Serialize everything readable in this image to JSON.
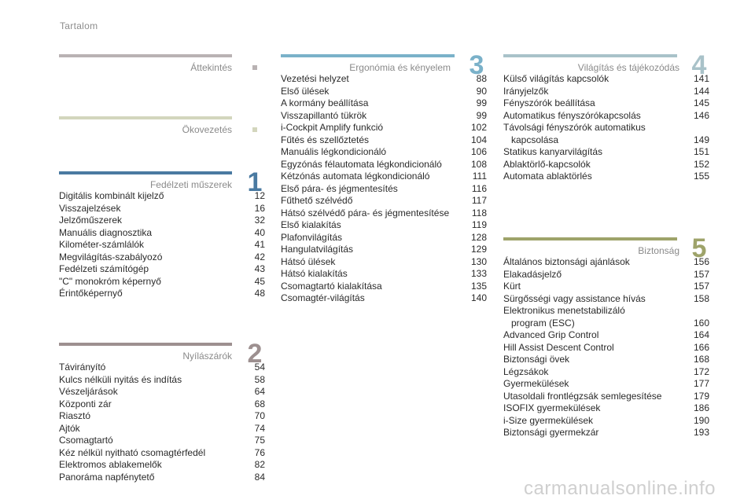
{
  "header": {
    "title": "Tartalom"
  },
  "sections": {
    "attekintes": {
      "title": "Áttekintés",
      "color": "#b9b2b3"
    },
    "okovezetes": {
      "title": "Ökovezetés",
      "color": "#d3d6bd"
    },
    "s1": {
      "number": "1",
      "title": "Fedélzeti műszerek",
      "color": "#4a7aa1",
      "items": [
        {
          "label": "Digitális kombinált kijelző",
          "page": "12"
        },
        {
          "label": "Visszajelzések",
          "page": "16"
        },
        {
          "label": "Jelzőműszerek",
          "page": "32"
        },
        {
          "label": "Manuális diagnosztika",
          "page": "40"
        },
        {
          "label": "Kilométer-számlálók",
          "page": "41"
        },
        {
          "label": "Megvilágítás-szabályozó",
          "page": "42"
        },
        {
          "label": "Fedélzeti számítógép",
          "page": "43"
        },
        {
          "label": "\"C\" monokróm képernyő",
          "page": "45"
        },
        {
          "label": "Érintőképernyő",
          "page": "48"
        }
      ]
    },
    "s2": {
      "number": "2",
      "title": "Nyílászárók",
      "color": "#9d9090",
      "items": [
        {
          "label": "Távirányító",
          "page": "54"
        },
        {
          "label": "Kulcs nélküli nyitás és indítás",
          "page": "58"
        },
        {
          "label": "Vészeljárások",
          "page": "64"
        },
        {
          "label": "Központi zár",
          "page": "68"
        },
        {
          "label": "Riasztó",
          "page": "70"
        },
        {
          "label": "Ajtók",
          "page": "74"
        },
        {
          "label": "Csomagtartó",
          "page": "75"
        },
        {
          "label": "Kéz nélkül nyitható csomagtérfedél",
          "page": "76"
        },
        {
          "label": "Elektromos ablakemelők",
          "page": "82"
        },
        {
          "label": "Panoráma napfénytető",
          "page": "84"
        }
      ]
    },
    "s3": {
      "number": "3",
      "title": "Ergonómia és kényelem",
      "color": "#7ab1c9",
      "items": [
        {
          "label": "Vezetési helyzet",
          "page": "88"
        },
        {
          "label": "Első ülések",
          "page": "90"
        },
        {
          "label": "A kormány beállítása",
          "page": "99"
        },
        {
          "label": "Visszapillantó tükrök",
          "page": "99"
        },
        {
          "label": "i-Cockpit Amplify funkció",
          "page": "102"
        },
        {
          "label": "Fűtés és szellőztetés",
          "page": "104"
        },
        {
          "label": "Manuális légkondicionáló",
          "page": "106"
        },
        {
          "label": "Egyzónás félautomata légkondicionáló",
          "page": "108"
        },
        {
          "label": "Kétzónás automata légkondicionáló",
          "page": "111"
        },
        {
          "label": "Első pára- és jégmentesítés",
          "page": "116"
        },
        {
          "label": "Fűthető szélvédő",
          "page": "117"
        },
        {
          "label": "Hátsó szélvédő pára- és jégmentesítése",
          "page": "118"
        },
        {
          "label": "Első kialakítás",
          "page": "119"
        },
        {
          "label": "Plafonvilágítás",
          "page": "128"
        },
        {
          "label": "Hangulatvilágítás",
          "page": "129"
        },
        {
          "label": "Hátsó ülések",
          "page": "130"
        },
        {
          "label": "Hátsó kialakítás",
          "page": "133"
        },
        {
          "label": "Csomagtartó kialakítása",
          "page": "135"
        },
        {
          "label": "Csomagtér-világítás",
          "page": "140"
        }
      ]
    },
    "s4": {
      "number": "4",
      "title": "Világítás és tájékozódás",
      "color": "#a9c2c9",
      "items": [
        {
          "label": "Külső világítás kapcsolók",
          "page": "141"
        },
        {
          "label": "Irányjelzők",
          "page": "144"
        },
        {
          "label": "Fényszórók beállítása",
          "page": "145"
        },
        {
          "label": "Automatikus fényszórókapcsolás",
          "page": "146"
        },
        {
          "label": "Távolsági fényszórók automatikus",
          "label2": "kapcsolása",
          "page": "149"
        },
        {
          "label": "Statikus kanyarvilágítás",
          "page": "151"
        },
        {
          "label": "Ablaktörlő-kapcsolók",
          "page": "152"
        },
        {
          "label": "Automata ablaktörlés",
          "page": "155"
        }
      ]
    },
    "s5": {
      "number": "5",
      "title": "Biztonság",
      "color": "#9ea36a",
      "items": [
        {
          "label": "Általános biztonsági ajánlások",
          "page": "156"
        },
        {
          "label": "Elakadásjelző",
          "page": "157"
        },
        {
          "label": "Kürt",
          "page": "157"
        },
        {
          "label": "Sürgősségi vagy assistance hívás",
          "page": "158"
        },
        {
          "label": "Elektronikus menetstabilizáló",
          "label2": "program (ESC)",
          "page": "160"
        },
        {
          "label": "Advanced Grip Control",
          "page": "164"
        },
        {
          "label": "Hill Assist Descent Control",
          "page": "166"
        },
        {
          "label": "Biztonsági övek",
          "page": "168"
        },
        {
          "label": "Légzsákok",
          "page": "172"
        },
        {
          "label": "Gyermekülések",
          "page": "177"
        },
        {
          "label": "Utasoldali frontlégzsák semlegesítése",
          "page": "179"
        },
        {
          "label": "ISOFIX gyermekülések",
          "page": "186"
        },
        {
          "label": "i-Size gyermekülések",
          "page": "190"
        },
        {
          "label": "Biztonsági gyermekzár",
          "page": "193"
        }
      ]
    }
  },
  "watermark": "carmanualsonline.info"
}
